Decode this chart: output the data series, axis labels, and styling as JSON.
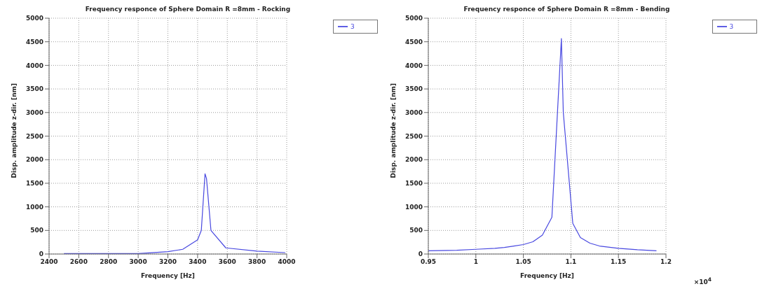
{
  "chart_data": [
    {
      "type": "line",
      "title": "Frequency responce of Sphere Domain R =8mm - Rocking",
      "xlabel": "Frequency [Hz]",
      "ylabel": "Disp. amplitude z-dir. [nm]",
      "x": [
        2500,
        2800,
        3000,
        3200,
        3300,
        3400,
        3425,
        3450,
        3460,
        3490,
        3590,
        3800,
        3990
      ],
      "series": [
        {
          "name": "3",
          "color": "#4848e0",
          "values": [
            10,
            10,
            10,
            50,
            100,
            300,
            500,
            1700,
            1600,
            500,
            130,
            60,
            30
          ]
        }
      ],
      "xlim": [
        2400,
        4000
      ],
      "xticks": [
        2400,
        2600,
        2800,
        3000,
        3200,
        3400,
        3600,
        3800,
        4000
      ],
      "ylim": [
        0,
        5000
      ],
      "yticks": [
        0,
        500,
        1000,
        1500,
        2000,
        2500,
        3000,
        3500,
        4000,
        4500,
        5000
      ],
      "grid": true,
      "legend": "top right",
      "marker": "none",
      "line_style": "solid"
    },
    {
      "type": "line",
      "title": "Frequency responce of Sphere Domain R =8mm - Bending",
      "xlabel": "Frequency [Hz]",
      "ylabel": "Disp. amplitude z-dir. [nm]",
      "annotations": [
        "×10$^{4}$"
      ],
      "x": [
        0.95,
        0.98,
        1.0,
        1.02,
        1.03,
        1.04,
        1.05,
        1.06,
        1.07,
        1.08,
        1.09,
        1.092,
        1.102,
        1.11,
        1.12,
        1.13,
        1.15,
        1.17,
        1.19
      ],
      "series": [
        {
          "name": "3",
          "color": "#4848e0",
          "values": [
            70,
            80,
            100,
            120,
            140,
            170,
            200,
            260,
            400,
            780,
            4570,
            3000,
            650,
            350,
            230,
            170,
            120,
            90,
            70
          ]
        }
      ],
      "xlim": [
        0.95,
        1.2
      ],
      "xticks": [
        0.95,
        1,
        1.05,
        1.1,
        1.15,
        1.2
      ],
      "ylim": [
        0,
        5000
      ],
      "yticks": [
        0,
        500,
        1000,
        1500,
        2000,
        2500,
        3000,
        3500,
        4000,
        4500,
        5000
      ],
      "grid": true,
      "legend": "top right",
      "marker": "none",
      "line_style": "solid"
    }
  ]
}
